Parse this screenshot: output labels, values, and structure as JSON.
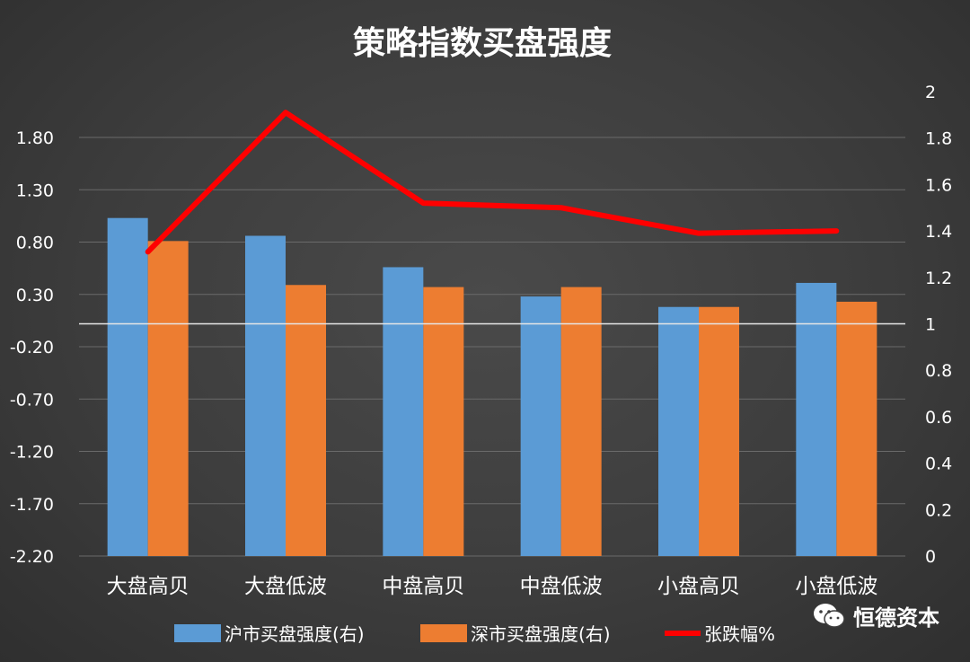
{
  "chart_data": {
    "type": "bar",
    "title": "策略指数买盘强度",
    "categories": [
      "大盘高贝",
      "大盘低波",
      "中盘高贝",
      "中盘低波",
      "小盘高贝",
      "小盘低波"
    ],
    "series": [
      {
        "name": "沪市买盘强度(右)",
        "type": "bar",
        "axis": "left",
        "color": "#5b9bd5",
        "values": [
          1.03,
          0.86,
          0.56,
          0.28,
          0.18,
          0.41
        ]
      },
      {
        "name": "深市买盘强度(右)",
        "type": "bar",
        "axis": "left",
        "color": "#ed7d31",
        "values": [
          0.81,
          0.39,
          0.37,
          0.37,
          0.18,
          0.23
        ]
      },
      {
        "name": "张跌幅%",
        "type": "line",
        "axis": "right",
        "color": "#ff0000",
        "values": [
          1.31,
          1.91,
          1.52,
          1.5,
          1.39,
          1.4
        ]
      }
    ],
    "left_axis": {
      "ylim": [
        -2.2,
        2.3
      ],
      "ticks": [
        "1.80",
        "1.30",
        "0.80",
        "0.30",
        "-0.20",
        "-0.70",
        "-1.20",
        "-1.70",
        "-2.20"
      ]
    },
    "right_axis": {
      "ylim": [
        0,
        2
      ],
      "ticks": [
        "2",
        "1.8",
        "1.6",
        "1.4",
        "1.2",
        "1",
        "0.8",
        "0.6",
        "0.4",
        "0.2",
        "0"
      ]
    },
    "grid": true,
    "legend_position": "bottom"
  },
  "watermark": {
    "text": "恒德资本",
    "icon": "wechat-icon"
  }
}
